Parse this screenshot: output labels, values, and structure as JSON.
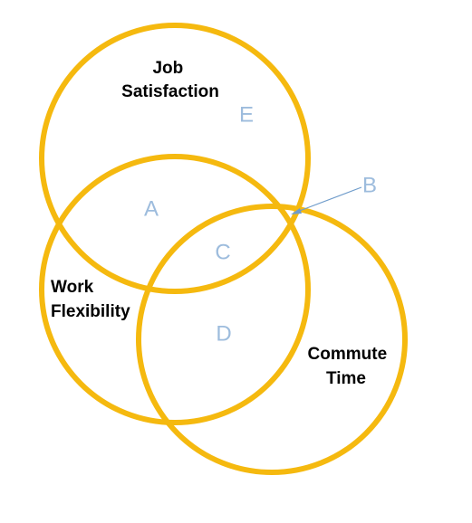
{
  "colors": {
    "circle_stroke": "#F5B90F",
    "region_label": "#9DBCDD",
    "pointer": "#6F9CCB"
  },
  "sets": {
    "job_satisfaction": [
      "Job",
      "Satisfaction"
    ],
    "work_flexibility": [
      "Work",
      "Flexibility"
    ],
    "commute_time": [
      "Commute",
      "Time"
    ]
  },
  "regions": {
    "a": "A",
    "b": "B",
    "c": "C",
    "d": "D",
    "e": "E"
  }
}
